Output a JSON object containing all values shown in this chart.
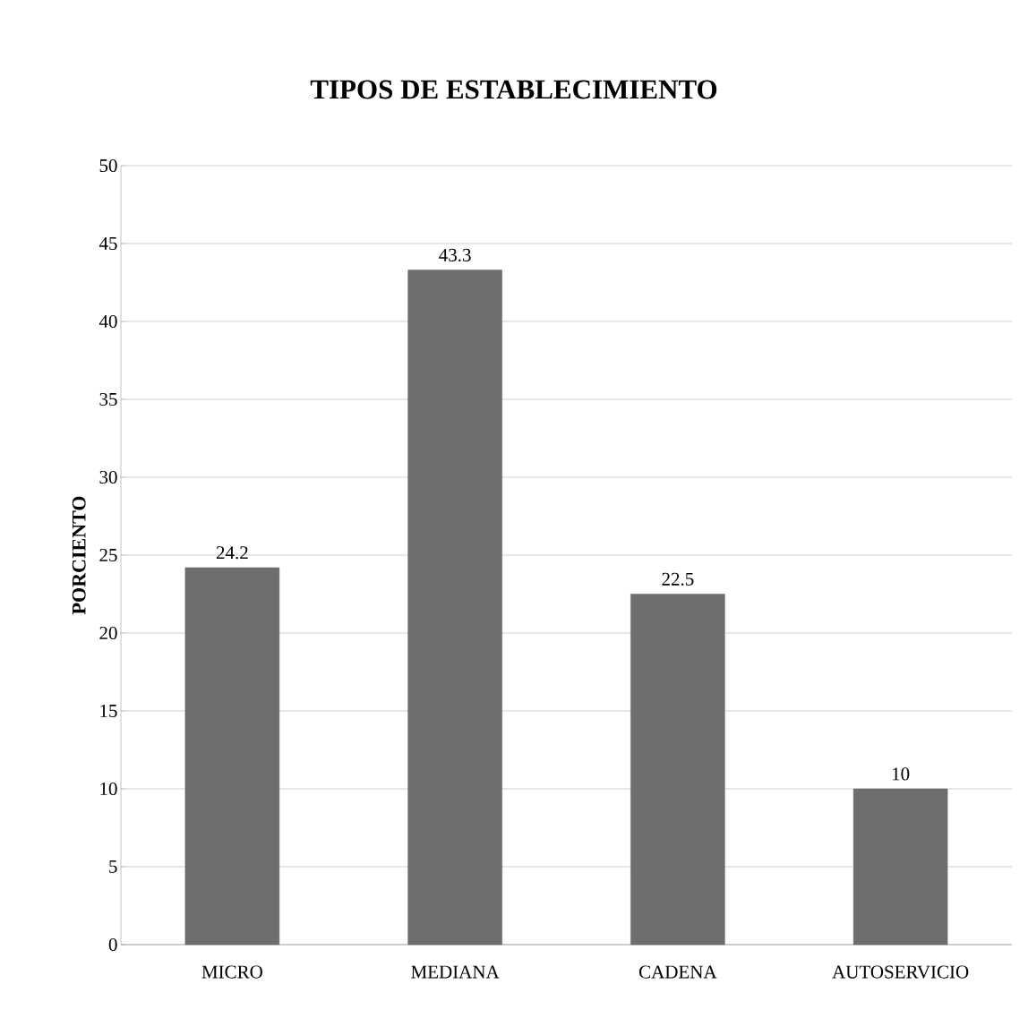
{
  "chart_data": {
    "type": "bar",
    "title": "TIPOS DE ESTABLECIMIENTO",
    "ylabel": "PORCIENTO",
    "categories": [
      "MICRO",
      "MEDIANA",
      "CADENA",
      "AUTOSERVICIO"
    ],
    "values": [
      24.2,
      43.3,
      22.5,
      10
    ],
    "color": "#6e6e6e",
    "ylim": [
      0,
      50
    ],
    "yticks": [
      0,
      5,
      10,
      15,
      20,
      25,
      30,
      35,
      40,
      45,
      50
    ],
    "grid": "y",
    "data_labels": true
  }
}
